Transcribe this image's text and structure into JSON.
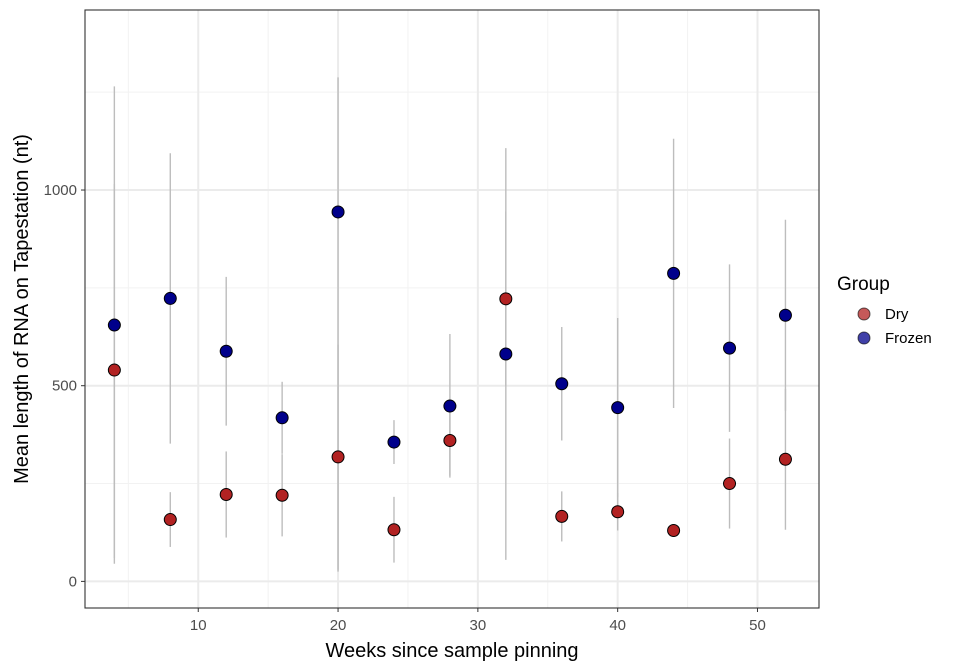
{
  "chart_data": {
    "type": "scatter",
    "xlabel": "Weeks since sample pinning",
    "ylabel": "Mean length of RNA on Tapestation (nt)",
    "xlim": [
      1.9,
      54.4
    ],
    "ylim": [
      -68,
      1460
    ],
    "x_ticks": [
      10,
      20,
      30,
      40,
      50
    ],
    "y_ticks": [
      0,
      500,
      1000
    ],
    "x_tick_labels": [
      "10",
      "20",
      "30",
      "40",
      "50"
    ],
    "y_tick_labels": [
      "0",
      "500",
      "1000"
    ],
    "grid": true,
    "legend": {
      "title": "Group",
      "position": "right"
    },
    "series": [
      {
        "name": "Dry",
        "color": "#b22222",
        "points": [
          {
            "x": 4,
            "y": 540,
            "ymin": 60,
            "ymax": 1015
          },
          {
            "x": 8,
            "y": 158,
            "ymin": 88,
            "ymax": 228
          },
          {
            "x": 12,
            "y": 222,
            "ymin": 112,
            "ymax": 332
          },
          {
            "x": 16,
            "y": 220,
            "ymin": 115,
            "ymax": 325
          },
          {
            "x": 20,
            "y": 318,
            "ymin": 30,
            "ymax": 605
          },
          {
            "x": 24,
            "y": 132,
            "ymin": 48,
            "ymax": 216
          },
          {
            "x": 28,
            "y": 360,
            "ymin": 270,
            "ymax": 450
          },
          {
            "x": 32,
            "y": 722,
            "ymin": 500,
            "ymax": 945
          },
          {
            "x": 36,
            "y": 166,
            "ymin": 102,
            "ymax": 230
          },
          {
            "x": 40,
            "y": 178,
            "ymin": 130,
            "ymax": 226
          },
          {
            "x": 44,
            "y": 130,
            "ymin": 118,
            "ymax": 142
          },
          {
            "x": 48,
            "y": 250,
            "ymin": 135,
            "ymax": 365
          },
          {
            "x": 52,
            "y": 312,
            "ymin": 132,
            "ymax": 492
          }
        ]
      },
      {
        "name": "Frozen",
        "color": "#00008b",
        "points": [
          {
            "x": 4,
            "y": 655,
            "ymin": 45,
            "ymax": 1265
          },
          {
            "x": 8,
            "y": 723,
            "ymin": 352,
            "ymax": 1094
          },
          {
            "x": 12,
            "y": 588,
            "ymin": 398,
            "ymax": 778
          },
          {
            "x": 16,
            "y": 418,
            "ymin": 326,
            "ymax": 510
          },
          {
            "x": 20,
            "y": 944,
            "ymin": 25,
            "ymax": 1288
          },
          {
            "x": 24,
            "y": 356,
            "ymin": 300,
            "ymax": 412
          },
          {
            "x": 28,
            "y": 448,
            "ymin": 265,
            "ymax": 632
          },
          {
            "x": 32,
            "y": 581,
            "ymin": 55,
            "ymax": 1107
          },
          {
            "x": 36,
            "y": 505,
            "ymin": 360,
            "ymax": 650
          },
          {
            "x": 40,
            "y": 444,
            "ymin": 215,
            "ymax": 673
          },
          {
            "x": 44,
            "y": 787,
            "ymin": 443,
            "ymax": 1131
          },
          {
            "x": 48,
            "y": 596,
            "ymin": 382,
            "ymax": 810
          },
          {
            "x": 52,
            "y": 680,
            "ymin": 436,
            "ymax": 924
          }
        ]
      }
    ]
  }
}
